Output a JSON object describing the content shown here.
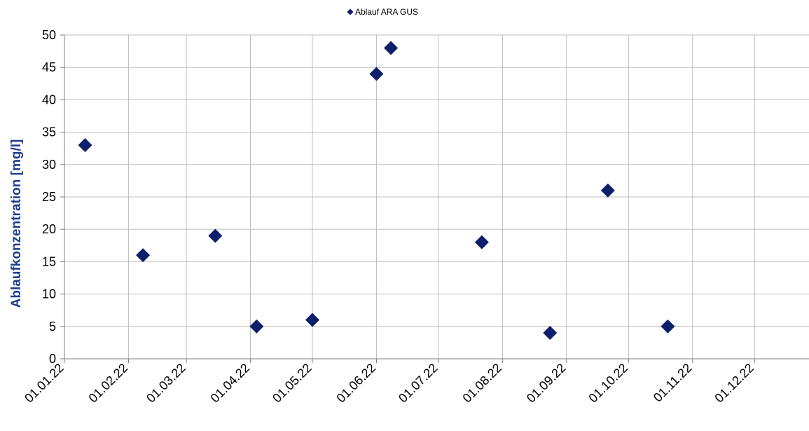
{
  "colors": {
    "marker": "#0D1F6B",
    "axis_label": "#1F3D8C",
    "grid": "#BFBFBF",
    "axis": "#808080"
  },
  "chart_data": {
    "type": "scatter",
    "title": "",
    "xlabel": "",
    "ylabel": "Ablaufkonzentration [mg/l]",
    "legend": {
      "position": "top-center",
      "marker": "diamond-icon"
    },
    "grid": true,
    "ylim": [
      0,
      50
    ],
    "y_ticks": [
      0,
      5,
      10,
      15,
      20,
      25,
      30,
      35,
      40,
      45,
      50
    ],
    "xlim": [
      "2022-01-01",
      "2022-12-31"
    ],
    "x_ticks": [
      "2022-01-01",
      "2022-02-01",
      "2022-03-01",
      "2022-04-01",
      "2022-05-01",
      "2022-06-01",
      "2022-07-01",
      "2022-08-01",
      "2022-09-01",
      "2022-10-01",
      "2022-11-01",
      "2022-12-01"
    ],
    "x_tick_labels": [
      "01.01.22",
      "01.02.22",
      "01.03.22",
      "01.04.22",
      "01.05.22",
      "01.06.22",
      "01.07.22",
      "01.08.22",
      "01.09.22",
      "01.10.22",
      "01.11.22",
      "01.12.22"
    ],
    "series": [
      {
        "name": "Ablauf ARA GUS",
        "marker": "diamond",
        "points": [
          {
            "x": "2022-01-11",
            "y": 33
          },
          {
            "x": "2022-02-08",
            "y": 16
          },
          {
            "x": "2022-03-15",
            "y": 19
          },
          {
            "x": "2022-04-04",
            "y": 5
          },
          {
            "x": "2022-05-01",
            "y": 6
          },
          {
            "x": "2022-06-01",
            "y": 44
          },
          {
            "x": "2022-06-08",
            "y": 48
          },
          {
            "x": "2022-07-22",
            "y": 18
          },
          {
            "x": "2022-08-24",
            "y": 4
          },
          {
            "x": "2022-09-21",
            "y": 26
          },
          {
            "x": "2022-10-20",
            "y": 5
          }
        ]
      }
    ]
  }
}
